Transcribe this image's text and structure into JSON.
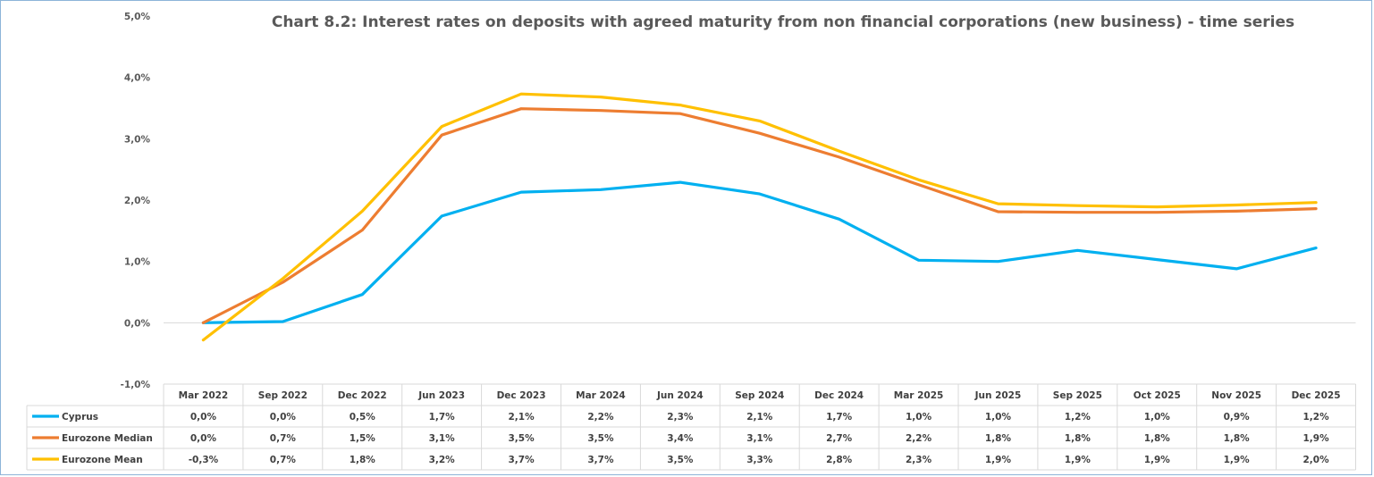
{
  "chart_data": {
    "type": "line",
    "title": "Chart 8.2: Interest rates on deposits with agreed maturity from non financial  corporations (new business) - time series",
    "categories": [
      "Mar 2022",
      "Sep 2022",
      "Dec 2022",
      "Jun 2023",
      "Dec 2023",
      "Mar 2024",
      "Jun 2024",
      "Sep 2024",
      "Dec 2024",
      "Mar 2025",
      "Jun 2025",
      "Sep 2025",
      "Oct 2025",
      "Nov 2025",
      "Dec 2025"
    ],
    "ylim": [
      -1.0,
      5.0
    ],
    "yticks": [
      "-1,0%",
      "0,0%",
      "1,0%",
      "2,0%",
      "3,0%",
      "4,0%",
      "5,0%"
    ],
    "ytick_values": [
      -1,
      0,
      1,
      2,
      3,
      4,
      5
    ],
    "grid": "horizontal at 0",
    "legend": "data-table",
    "series": [
      {
        "name": "Cyprus",
        "color": "#00b0f0",
        "values": [
          0.0,
          0.02,
          0.46,
          1.74,
          2.13,
          2.17,
          2.29,
          2.1,
          1.69,
          1.02,
          1.0,
          1.18,
          1.03,
          0.88,
          1.22
        ],
        "labels": [
          "0,0%",
          "0,0%",
          "0,5%",
          "1,7%",
          "2,1%",
          "2,2%",
          "2,3%",
          "2,1%",
          "1,7%",
          "1,0%",
          "1,0%",
          "1,2%",
          "1,0%",
          "0,9%",
          "1,2%"
        ]
      },
      {
        "name": "Eurozone Median",
        "color": "#ed7d31",
        "values": [
          0.0,
          0.66,
          1.51,
          3.06,
          3.49,
          3.46,
          3.41,
          3.09,
          2.7,
          2.25,
          1.81,
          1.8,
          1.8,
          1.82,
          1.86
        ],
        "labels": [
          "0,0%",
          "0,7%",
          "1,5%",
          "3,1%",
          "3,5%",
          "3,5%",
          "3,4%",
          "3,1%",
          "2,7%",
          "2,2%",
          "1,8%",
          "1,8%",
          "1,8%",
          "1,8%",
          "1,9%"
        ]
      },
      {
        "name": "Eurozone Mean",
        "color": "#ffc000",
        "values": [
          -0.28,
          0.72,
          1.82,
          3.2,
          3.73,
          3.68,
          3.55,
          3.29,
          2.8,
          2.33,
          1.94,
          1.91,
          1.89,
          1.92,
          1.96
        ],
        "labels": [
          "-0,3%",
          "0,7%",
          "1,8%",
          "3,2%",
          "3,7%",
          "3,7%",
          "3,5%",
          "3,3%",
          "2,8%",
          "2,3%",
          "1,9%",
          "1,9%",
          "1,9%",
          "1,9%",
          "2,0%"
        ]
      }
    ]
  }
}
